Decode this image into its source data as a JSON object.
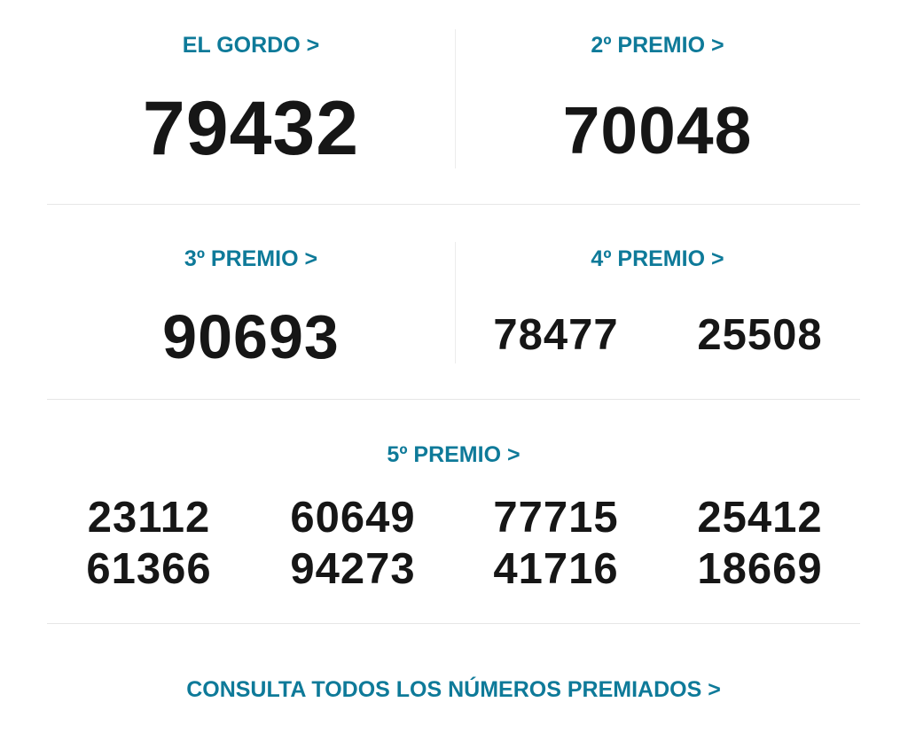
{
  "accent_color": "#0e7a99",
  "el_gordo": {
    "label": "EL GORDO >",
    "number": "79432"
  },
  "segundo": {
    "label": "2º PREMIO >",
    "number": "70048"
  },
  "tercero": {
    "label": "3º PREMIO >",
    "number": "90693"
  },
  "cuarto": {
    "label": "4º PREMIO >",
    "numbers": [
      "78477",
      "25508"
    ]
  },
  "quinto": {
    "label": "5º PREMIO >",
    "numbers": [
      "23112",
      "60649",
      "77715",
      "25412",
      "61366",
      "94273",
      "41716",
      "18669"
    ]
  },
  "footer_link": "CONSULTA TODOS LOS NÚMEROS PREMIADOS >"
}
